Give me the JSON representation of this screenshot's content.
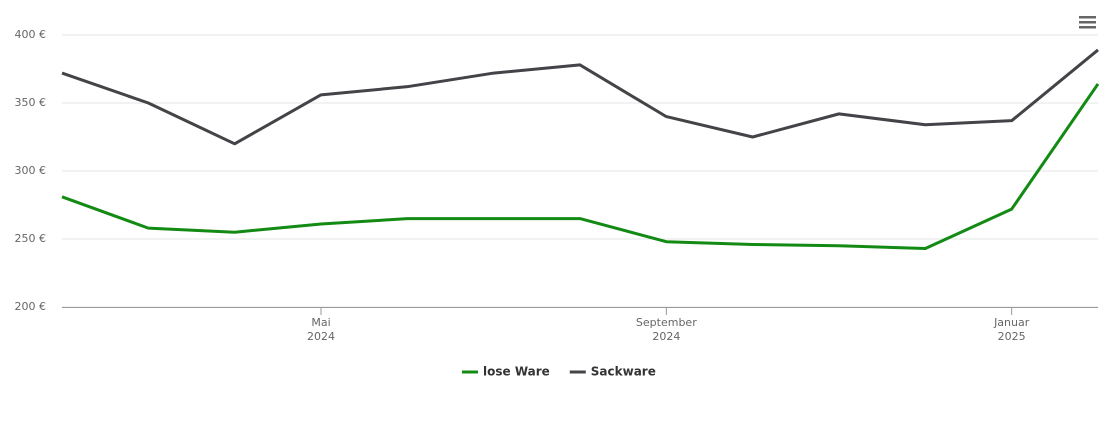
{
  "chart_data": {
    "type": "line",
    "x": [
      "2024-02",
      "2024-03",
      "2024-04",
      "2024-05",
      "2024-06",
      "2024-07",
      "2024-08",
      "2024-09",
      "2024-10",
      "2024-11",
      "2024-12",
      "2025-01",
      "2025-02"
    ],
    "xlim": [
      "2024-02",
      "2025-02"
    ],
    "xticks": [
      {
        "value": "2024-05",
        "label": [
          "Mai",
          "2024"
        ]
      },
      {
        "value": "2024-09",
        "label": [
          "September",
          "2024"
        ]
      },
      {
        "value": "2025-01",
        "label": [
          "Januar",
          "2025"
        ]
      }
    ],
    "ylim": [
      200,
      400
    ],
    "yticks": [
      {
        "value": 200,
        "label": "200 €"
      },
      {
        "value": 250,
        "label": "250 €"
      },
      {
        "value": 300,
        "label": "300 €"
      },
      {
        "value": 350,
        "label": "350 €"
      },
      {
        "value": 400,
        "label": "400 €"
      }
    ],
    "grid": true,
    "legend": "bottom",
    "series": [
      {
        "name": "lose Ware",
        "color": "#138a13",
        "values": [
          281,
          258,
          255,
          261,
          265,
          265,
          265,
          248,
          246,
          245,
          243,
          272,
          364
        ]
      },
      {
        "name": "Sackware",
        "color": "#434348",
        "values": [
          372,
          350,
          320,
          356,
          362,
          372,
          378,
          340,
          325,
          342,
          334,
          337,
          389
        ]
      }
    ]
  }
}
